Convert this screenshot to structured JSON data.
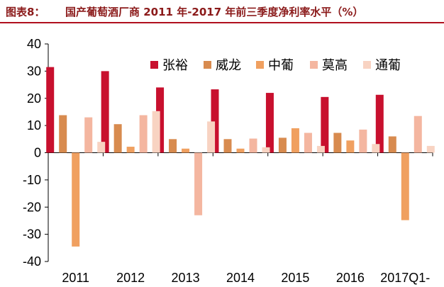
{
  "figure": {
    "label": "图表8：",
    "title": "国产葡萄酒厂商 2011 年-2017 年前三季度净利率水平（%）"
  },
  "colors": {
    "accent": "#b0101e",
    "title": "#8b1a1a",
    "series": [
      "#c8102e",
      "#d88b4f",
      "#f0a060",
      "#f4b6a0",
      "#f8d3c2"
    ]
  },
  "chart_data": {
    "type": "bar",
    "title": "国产葡萄酒厂商 2011 年-2017 年前三季度净利率水平（%）",
    "categories": [
      "2011",
      "2012",
      "2013",
      "2014",
      "2015",
      "2016",
      "2017Q1-"
    ],
    "series": [
      {
        "name": "张裕",
        "values": [
          31.5,
          30,
          24,
          23.3,
          22,
          20.5,
          21.3
        ]
      },
      {
        "name": "威龙",
        "values": [
          13.8,
          10.5,
          5,
          5,
          5.5,
          7.3,
          6
        ]
      },
      {
        "name": "中葡",
        "values": [
          -34.5,
          2.2,
          1.5,
          1.5,
          9,
          4.5,
          -24.8
        ]
      },
      {
        "name": "莫高",
        "values": [
          13,
          13.8,
          -23,
          5.2,
          7.3,
          8.5,
          13.5
        ]
      },
      {
        "name": "通葡",
        "values": [
          4,
          15.3,
          11.5,
          2,
          2.5,
          3.2,
          2.5
        ]
      }
    ],
    "yticks": [
      40,
      30,
      20,
      10,
      0,
      -10,
      -20,
      -30,
      -40
    ],
    "ylim": [
      -40,
      40
    ],
    "xlabel": "",
    "ylabel": "",
    "grid": false,
    "legend": "top"
  }
}
